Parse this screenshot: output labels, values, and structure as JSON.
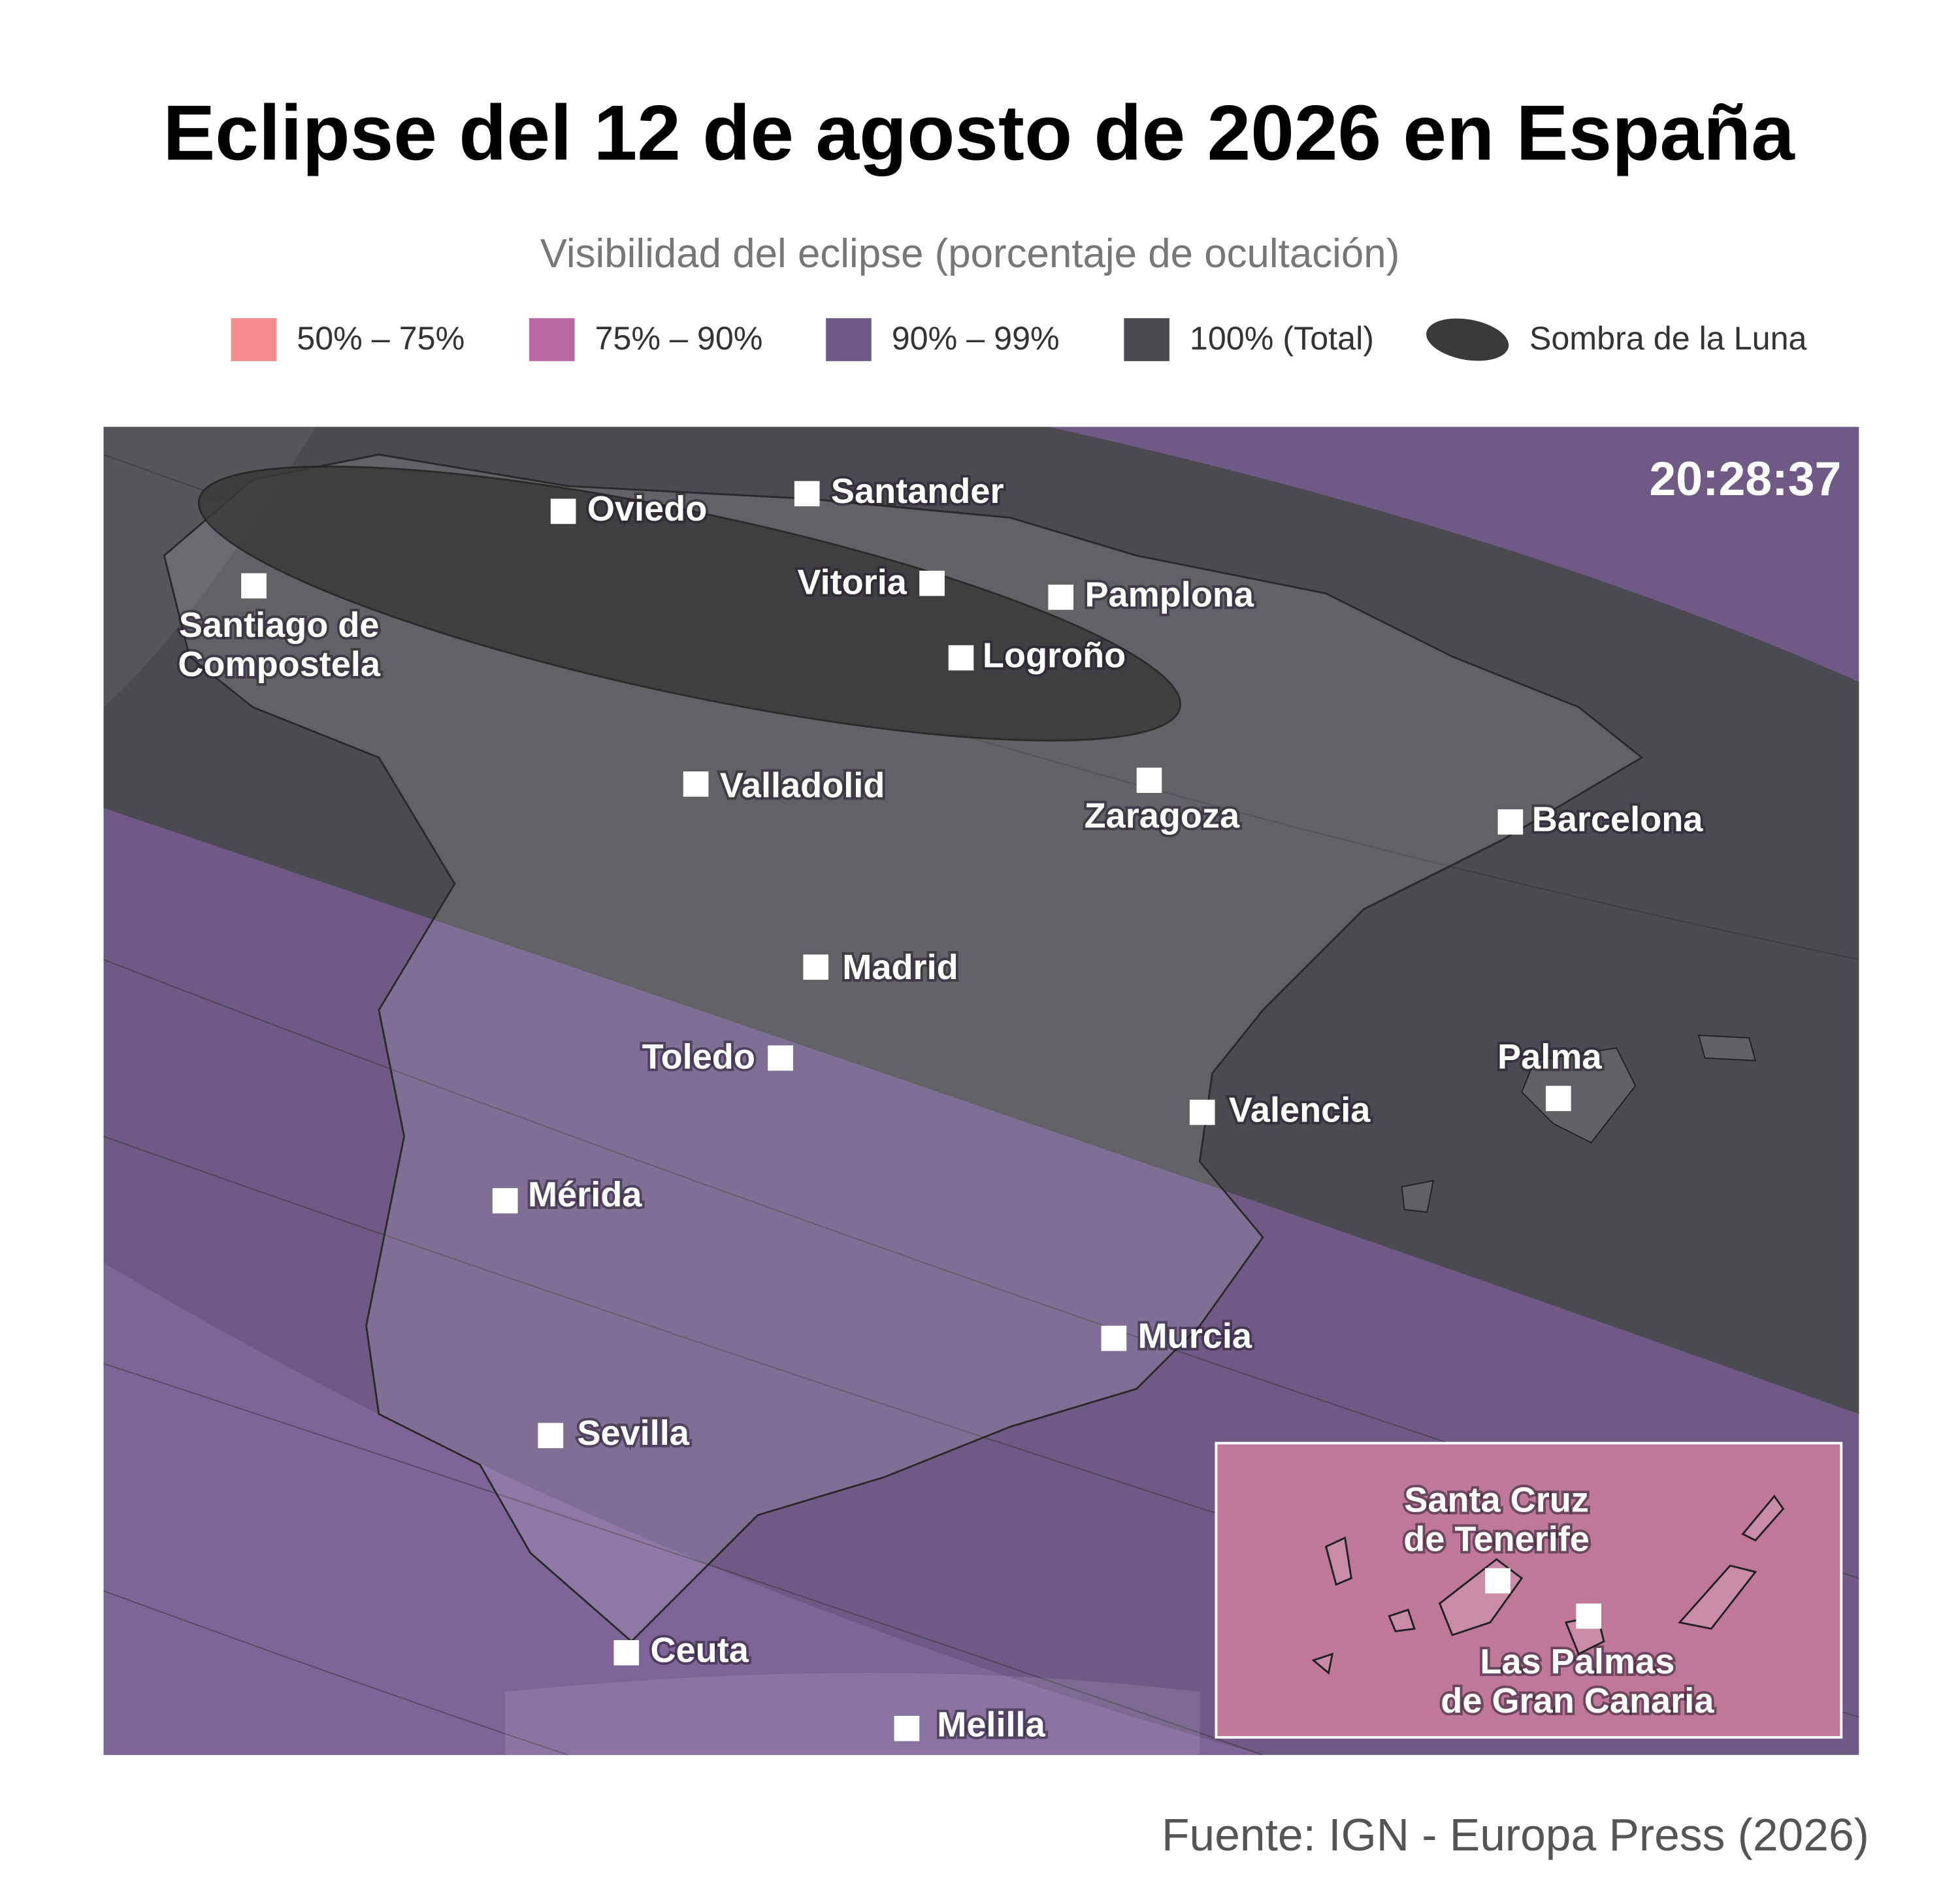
{
  "title": "Eclipse del 12 de agosto de 2026 en España",
  "subtitle": "Visibilidad del eclipse (porcentaje de ocultación)",
  "legend": [
    {
      "label": "50% – 75%",
      "color": "#f28b8b"
    },
    {
      "label": "75% – 90%",
      "color": "#b86aa0"
    },
    {
      "label": "90% – 99%",
      "color": "#6e5a85"
    },
    {
      "label": "100% (Total)",
      "color": "#4a4a50"
    },
    {
      "label": "Sombra de la Luna",
      "color": "#3a3a3c"
    }
  ],
  "time": "20:28:37",
  "cities": [
    [
      "Oviedo"
    ],
    [
      "Santander"
    ],
    [
      "Santiago de",
      "Compostela"
    ],
    [
      "Vitoria"
    ],
    [
      "Pamplona"
    ],
    [
      "Logroño"
    ],
    [
      "Valladolid"
    ],
    [
      "Zaragoza"
    ],
    [
      "Barcelona"
    ],
    [
      "Madrid"
    ],
    [
      "Toledo"
    ],
    [
      "Palma"
    ],
    [
      "Valencia"
    ],
    [
      "Mérida"
    ],
    [
      "Murcia"
    ],
    [
      "Sevilla"
    ],
    [
      "Ceuta"
    ],
    [
      "Melilla"
    ],
    [
      "Santa Cruz",
      "de Tenerife"
    ],
    [
      "Las Palmas",
      "de Gran Canaria"
    ]
  ],
  "source": "Fuente: IGN - Europa Press (2026)"
}
